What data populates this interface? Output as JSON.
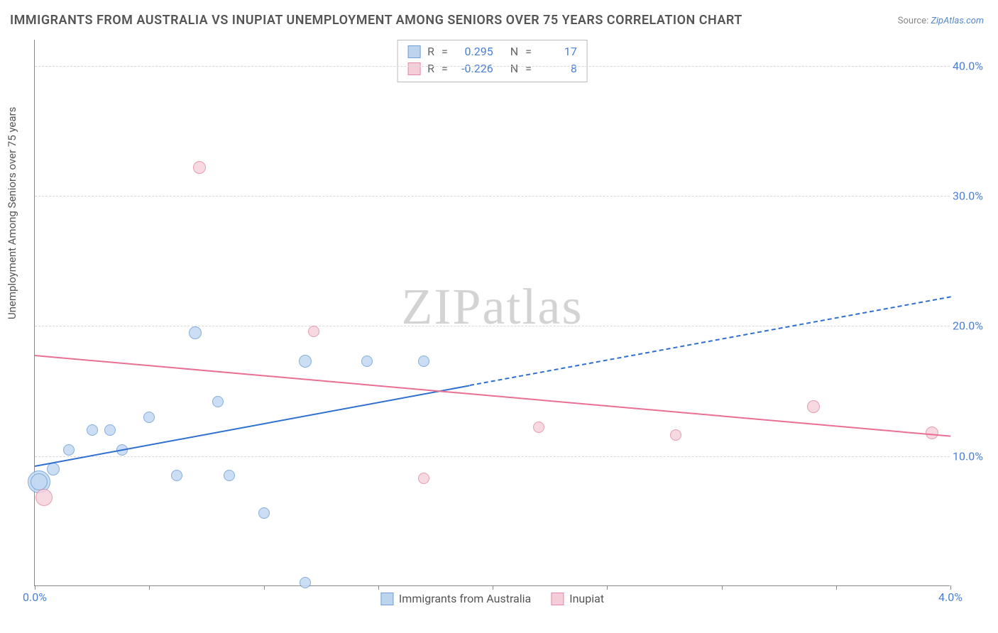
{
  "title": "IMMIGRANTS FROM AUSTRALIA VS INUPIAT UNEMPLOYMENT AMONG SENIORS OVER 75 YEARS CORRELATION CHART",
  "source_label": "Source:",
  "source_name": "ZipAtlas.com",
  "y_axis_label": "Unemployment Among Seniors over 75 years",
  "watermark": "ZIPatlas",
  "chart": {
    "type": "scatter",
    "xlim": [
      0.0,
      4.0
    ],
    "ylim": [
      0.0,
      42.0
    ],
    "x_ticks_minor": [
      0.0,
      0.5,
      1.0,
      1.5,
      2.0,
      2.5,
      3.0,
      3.5,
      4.0
    ],
    "x_ticks_labeled": [
      {
        "v": 0.0,
        "label": "0.0%"
      },
      {
        "v": 4.0,
        "label": "4.0%"
      }
    ],
    "y_gridlines": [
      10.0,
      20.0,
      30.0,
      40.0
    ],
    "y_ticks_labeled": [
      {
        "v": 10.0,
        "label": "10.0%"
      },
      {
        "v": 20.0,
        "label": "20.0%"
      },
      {
        "v": 30.0,
        "label": "30.0%"
      },
      {
        "v": 40.0,
        "label": "40.0%"
      }
    ],
    "background_color": "#ffffff",
    "grid_color": "#d8d8d8",
    "axis_color": "#888888",
    "label_color": "#4a7fd6",
    "title_color": "#555555",
    "title_fontsize": 18,
    "label_fontsize": 16,
    "axis_title_fontsize": 15
  },
  "series": [
    {
      "name": "Immigrants from Australia",
      "fill": "#c2d9f2",
      "stroke": "#6f9fd8",
      "swatch_fill": "#bcd4ee",
      "swatch_stroke": "#6f9fd8",
      "R": "0.295",
      "N": "17",
      "trend": {
        "color": "#2f6fd0",
        "x1": 0.0,
        "y1": 9.3,
        "x_solid_end": 1.9,
        "y_solid_end": 15.5,
        "x2": 4.0,
        "y2": 22.3
      },
      "points": [
        {
          "x": 0.02,
          "y": 8.0,
          "r": 16
        },
        {
          "x": 0.02,
          "y": 8.0,
          "r": 12
        },
        {
          "x": 0.08,
          "y": 9.0,
          "r": 9
        },
        {
          "x": 0.15,
          "y": 10.5,
          "r": 8
        },
        {
          "x": 0.25,
          "y": 12.0,
          "r": 8
        },
        {
          "x": 0.33,
          "y": 12.0,
          "r": 8
        },
        {
          "x": 0.38,
          "y": 10.5,
          "r": 8
        },
        {
          "x": 0.5,
          "y": 13.0,
          "r": 8
        },
        {
          "x": 0.62,
          "y": 8.5,
          "r": 8
        },
        {
          "x": 0.7,
          "y": 19.5,
          "r": 9
        },
        {
          "x": 0.8,
          "y": 14.2,
          "r": 8
        },
        {
          "x": 0.85,
          "y": 8.5,
          "r": 8
        },
        {
          "x": 1.0,
          "y": 5.6,
          "r": 8
        },
        {
          "x": 1.18,
          "y": 17.3,
          "r": 9
        },
        {
          "x": 1.18,
          "y": 0.3,
          "r": 8
        },
        {
          "x": 1.45,
          "y": 17.3,
          "r": 8
        },
        {
          "x": 1.7,
          "y": 17.3,
          "r": 8
        }
      ]
    },
    {
      "name": "Inupiat",
      "fill": "#f6d3dc",
      "stroke": "#e48aa4",
      "swatch_fill": "#f4cdd8",
      "swatch_stroke": "#e48aa4",
      "R": "-0.226",
      "N": "8",
      "trend": {
        "color": "#e96f93",
        "x1": 0.0,
        "y1": 17.8,
        "x_solid_end": 4.0,
        "y_solid_end": 11.6,
        "x2": 4.0,
        "y2": 11.6
      },
      "points": [
        {
          "x": 0.04,
          "y": 6.8,
          "r": 12
        },
        {
          "x": 0.72,
          "y": 32.2,
          "r": 9
        },
        {
          "x": 1.22,
          "y": 19.6,
          "r": 8
        },
        {
          "x": 1.7,
          "y": 8.3,
          "r": 8
        },
        {
          "x": 2.2,
          "y": 12.2,
          "r": 8
        },
        {
          "x": 2.8,
          "y": 11.6,
          "r": 8
        },
        {
          "x": 3.4,
          "y": 13.8,
          "r": 9
        },
        {
          "x": 3.92,
          "y": 11.8,
          "r": 9
        }
      ]
    }
  ],
  "legend": {
    "series1_label": "Immigrants from Australia",
    "series2_label": "Inupiat"
  },
  "stats_box": {
    "R_label": "R",
    "N_label": "N",
    "eq": "="
  }
}
